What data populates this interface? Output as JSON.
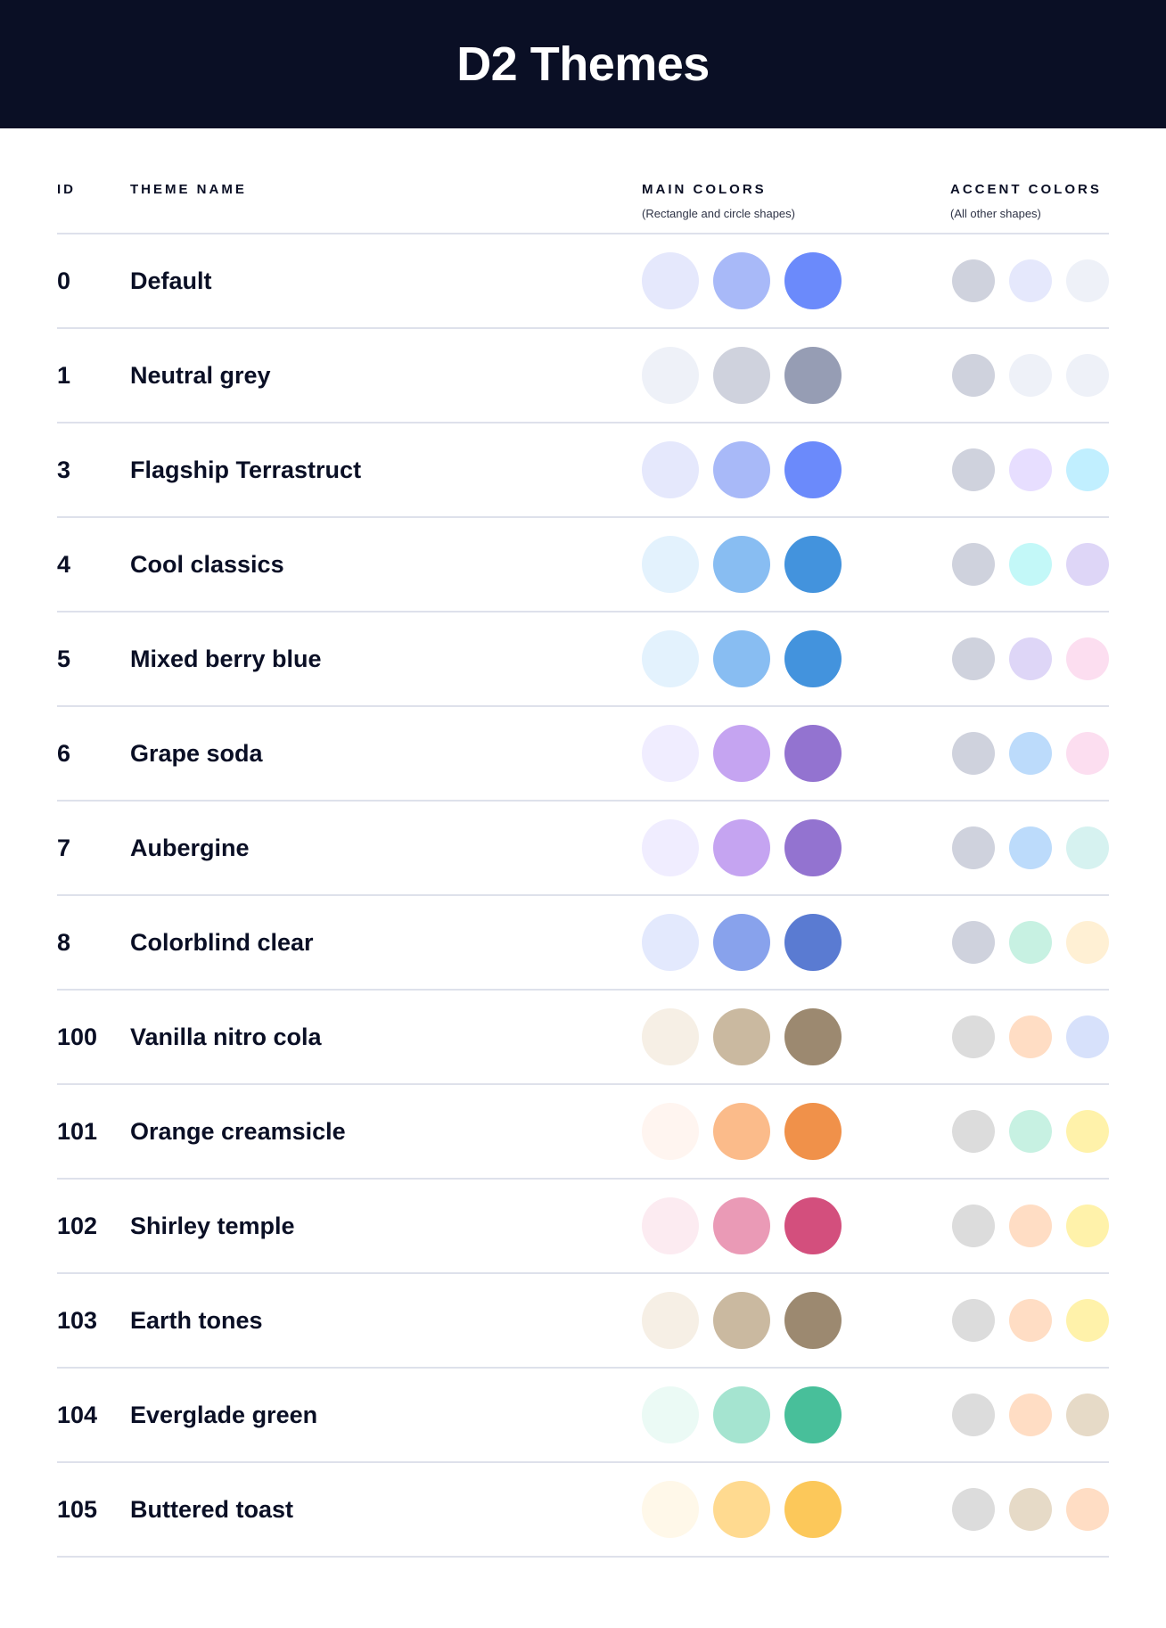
{
  "title": "D2 Themes",
  "columns": {
    "id": "ID",
    "name": "THEME NAME",
    "main": "MAIN COLORS",
    "main_sub": "(Rectangle and circle shapes)",
    "accent": "ACCENT COLORS",
    "accent_sub": "(All other shapes)"
  },
  "themes": [
    {
      "id": "0",
      "name": "Default",
      "main": [
        "#E5E8FC",
        "#A8B9F8",
        "#6B8AFB"
      ],
      "accent": [
        "#CFD2DD",
        "#E5E8FC",
        "#EEF1F8"
      ]
    },
    {
      "id": "1",
      "name": "Neutral grey",
      "main": [
        "#EEF1F8",
        "#CFD2DD",
        "#969DB4"
      ],
      "accent": [
        "#CFD2DD",
        "#EEF1F8",
        "#EEF1F8"
      ]
    },
    {
      "id": "3",
      "name": "Flagship Terrastruct",
      "main": [
        "#E5E8FC",
        "#A8B9F8",
        "#6B8AFB"
      ],
      "accent": [
        "#CFD2DD",
        "#E7DEFF",
        "#C1EFFF"
      ]
    },
    {
      "id": "4",
      "name": "Cool classics",
      "main": [
        "#E3F2FD",
        "#88BDF2",
        "#4393DD"
      ],
      "accent": [
        "#CFD2DD",
        "#C3F8F8",
        "#DED6F7"
      ]
    },
    {
      "id": "5",
      "name": "Mixed berry blue",
      "main": [
        "#E3F2FD",
        "#88BDF2",
        "#4393DD"
      ],
      "accent": [
        "#CFD2DD",
        "#DED6F7",
        "#FCDEF0"
      ]
    },
    {
      "id": "6",
      "name": "Grape soda",
      "main": [
        "#F0EDFF",
        "#C5A4F1",
        "#9373D0"
      ],
      "accent": [
        "#CFD2DD",
        "#BCDBFB",
        "#FCDEF0"
      ]
    },
    {
      "id": "7",
      "name": "Aubergine",
      "main": [
        "#F0EDFF",
        "#C5A4F1",
        "#9373D0"
      ],
      "accent": [
        "#CFD2DD",
        "#BCDBFB",
        "#D6F2F0"
      ]
    },
    {
      "id": "8",
      "name": "Colorblind clear",
      "main": [
        "#E3E9FD",
        "#88A2EC",
        "#5A7BD2"
      ],
      "accent": [
        "#CFD2DD",
        "#C7F1E2",
        "#FFF0D4"
      ]
    },
    {
      "id": "100",
      "name": "Vanilla nitro cola",
      "main": [
        "#F6EFE5",
        "#CAB9A0",
        "#9C8970"
      ],
      "accent": [
        "#DCDCDC",
        "#FFDDC4",
        "#D7E1FB"
      ]
    },
    {
      "id": "101",
      "name": "Orange creamsicle",
      "main": [
        "#FFF5F0",
        "#FBBB8A",
        "#F0914A"
      ],
      "accent": [
        "#DCDCDC",
        "#C7F1E2",
        "#FFF2AA"
      ]
    },
    {
      "id": "102",
      "name": "Shirley temple",
      "main": [
        "#FCEBF1",
        "#EA9AB6",
        "#D34F7D"
      ],
      "accent": [
        "#DCDCDC",
        "#FFDDC4",
        "#FFF2AA"
      ]
    },
    {
      "id": "103",
      "name": "Earth tones",
      "main": [
        "#F6EFE5",
        "#CAB9A0",
        "#9C8970"
      ],
      "accent": [
        "#DCDCDC",
        "#FFDDC4",
        "#FFF2AA"
      ]
    },
    {
      "id": "104",
      "name": "Everglade green",
      "main": [
        "#EBFAF5",
        "#A5E4D0",
        "#48BF9A"
      ],
      "accent": [
        "#DCDCDC",
        "#FFDDC4",
        "#E6DAC7"
      ]
    },
    {
      "id": "105",
      "name": "Buttered toast",
      "main": [
        "#FFF8E9",
        "#FFDA90",
        "#FCC85A"
      ],
      "accent": [
        "#DCDCDC",
        "#E6DAC7",
        "#FFDDC4"
      ]
    }
  ]
}
